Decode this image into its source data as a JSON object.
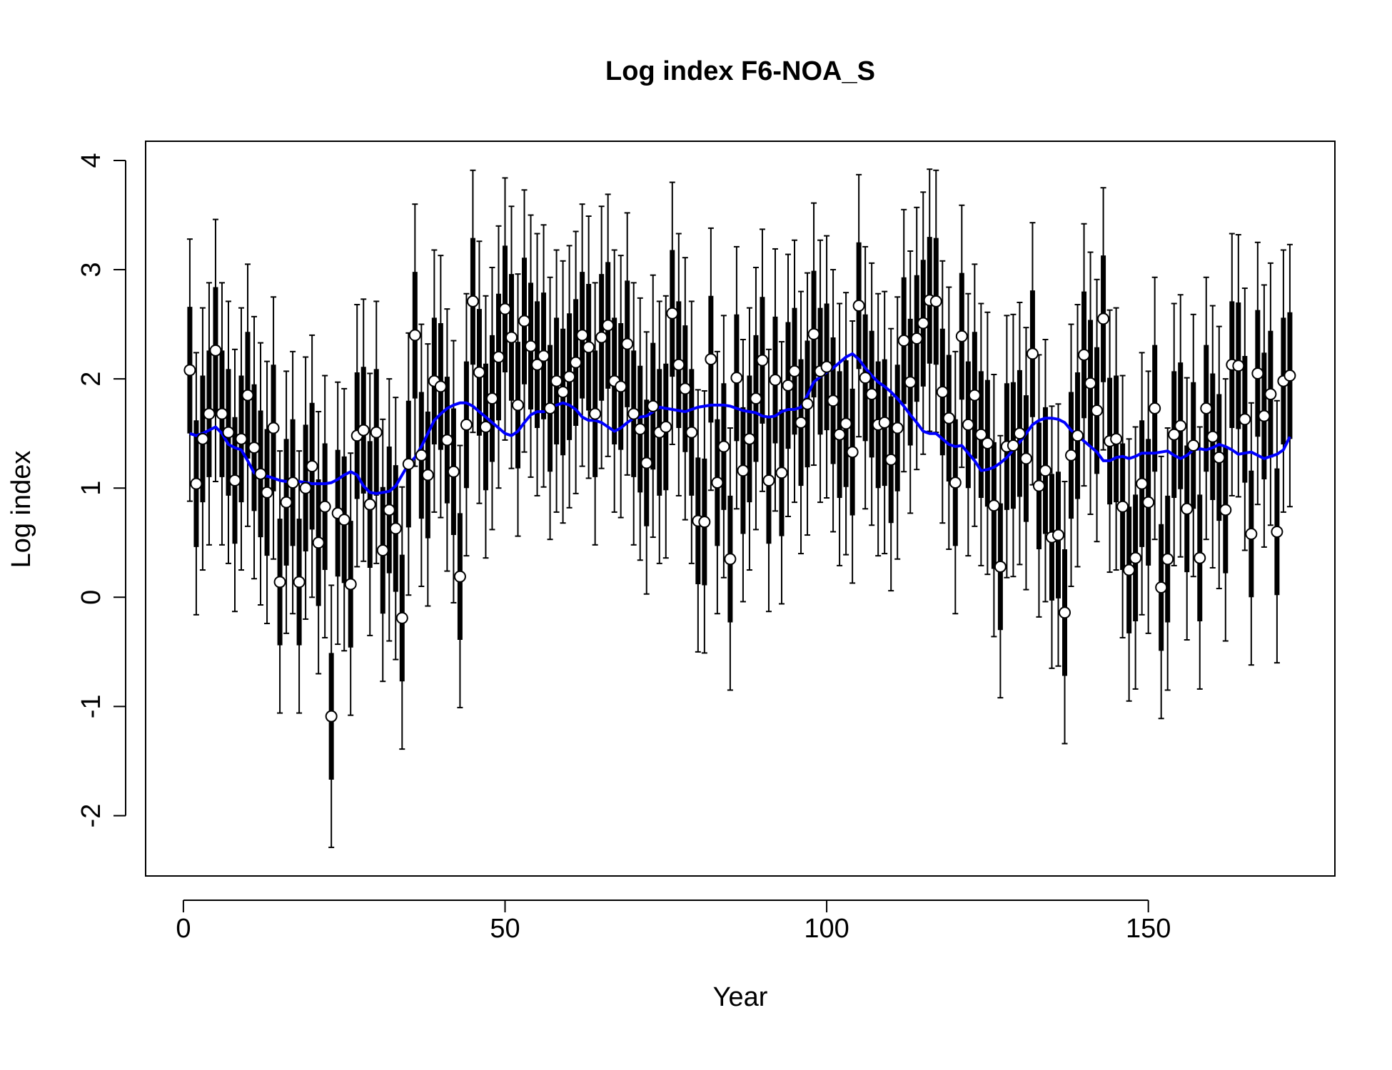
{
  "chart_data": {
    "type": "errorbar",
    "title": "Log index F6-NOA_S",
    "x_label": "Year",
    "y_label": "Log index",
    "xlim": [
      -5.87,
      179.0
    ],
    "ylim": [
      -2.552,
      4.176
    ],
    "xticks": [
      0,
      50,
      100,
      150
    ],
    "yticks": [
      -2,
      -1,
      0,
      1,
      2,
      3,
      4
    ],
    "x": [
      1,
      2,
      3,
      4,
      5,
      6,
      7,
      8,
      9,
      10,
      11,
      12,
      13,
      14,
      15,
      16,
      17,
      18,
      19,
      20,
      21,
      22,
      23,
      24,
      25,
      26,
      27,
      28,
      29,
      30,
      31,
      32,
      33,
      34,
      35,
      36,
      37,
      38,
      39,
      40,
      41,
      42,
      43,
      44,
      45,
      46,
      47,
      48,
      49,
      50,
      51,
      52,
      53,
      54,
      55,
      56,
      57,
      58,
      59,
      60,
      61,
      62,
      63,
      64,
      65,
      66,
      67,
      68,
      69,
      70,
      71,
      72,
      73,
      74,
      75,
      76,
      77,
      78,
      79,
      80,
      81,
      82,
      83,
      84,
      85,
      86,
      87,
      88,
      89,
      90,
      91,
      92,
      93,
      94,
      95,
      96,
      97,
      98,
      99,
      100,
      101,
      102,
      103,
      104,
      105,
      106,
      107,
      108,
      109,
      110,
      111,
      112,
      113,
      114,
      115,
      116,
      117,
      118,
      119,
      120,
      121,
      122,
      123,
      124,
      125,
      126,
      127,
      128,
      129,
      130,
      131,
      132,
      133,
      134,
      135,
      136,
      137,
      138,
      139,
      140,
      141,
      142,
      143,
      144,
      145,
      146,
      147,
      148,
      149,
      150,
      151,
      152,
      153,
      154,
      155,
      156,
      157,
      158,
      159,
      160,
      161,
      162,
      163,
      164,
      165,
      166,
      167,
      168,
      169,
      170,
      171,
      172
    ],
    "series": [
      {
        "color": "#000000",
        "error_outer": 1.2,
        "error_inner": 0.58,
        "values": [
          2.08,
          1.04,
          1.45,
          1.68,
          2.26,
          1.68,
          1.51,
          1.07,
          1.45,
          1.85,
          1.37,
          1.13,
          0.96,
          1.55,
          0.14,
          0.87,
          1.05,
          0.14,
          1.0,
          1.2,
          0.5,
          0.83,
          -1.09,
          0.77,
          0.71,
          0.12,
          1.48,
          1.53,
          0.85,
          1.51,
          0.43,
          0.8,
          0.63,
          -0.19,
          1.22,
          2.4,
          1.3,
          1.12,
          1.98,
          1.93,
          1.44,
          1.15,
          0.19,
          1.58,
          2.71,
          2.06,
          1.56,
          1.82,
          2.2,
          2.64,
          2.38,
          1.76,
          2.53,
          2.3,
          2.13,
          2.21,
          1.73,
          1.98,
          1.88,
          2.02,
          2.15,
          2.4,
          2.29,
          1.68,
          2.38,
          2.49,
          1.98,
          1.93,
          2.32,
          1.68,
          1.54,
          1.23,
          1.75,
          1.51,
          1.56,
          2.6,
          2.13,
          1.91,
          1.51,
          0.7,
          0.69,
          2.18,
          1.05,
          1.38,
          0.35,
          2.01,
          1.16,
          1.45,
          1.82,
          2.17,
          1.07,
          1.99,
          1.14,
          1.94,
          2.07,
          1.6,
          1.77,
          2.41,
          2.07,
          2.11,
          1.8,
          1.49,
          1.59,
          1.33,
          2.67,
          2.01,
          1.86,
          1.58,
          1.6,
          1.26,
          1.55,
          2.35,
          1.97,
          2.37,
          2.51,
          2.72,
          2.71,
          1.88,
          1.64,
          1.05,
          2.39,
          1.58,
          1.85,
          1.49,
          1.41,
          0.84,
          0.28,
          1.38,
          1.39,
          1.5,
          1.27,
          2.23,
          1.02,
          1.16,
          0.55,
          0.57,
          -0.14,
          1.3,
          1.48,
          2.22,
          1.96,
          1.71,
          2.55,
          1.43,
          1.45,
          0.83,
          0.25,
          0.36,
          1.04,
          0.87,
          1.73,
          0.09,
          0.35,
          1.49,
          1.57,
          0.81,
          1.39,
          0.36,
          1.73,
          1.47,
          1.28,
          0.8,
          2.13,
          2.12,
          1.63,
          0.58,
          2.05,
          1.66,
          1.86,
          0.6,
          1.98,
          2.03
        ]
      },
      {
        "color": "#0000ff",
        "values": [
          1.5,
          1.48,
          1.5,
          1.53,
          1.56,
          1.5,
          1.4,
          1.37,
          1.35,
          1.25,
          1.14,
          1.1,
          1.11,
          1.09,
          1.07,
          1.06,
          1.07,
          1.06,
          1.05,
          1.04,
          1.04,
          1.04,
          1.05,
          1.08,
          1.12,
          1.15,
          1.12,
          1.02,
          0.96,
          0.95,
          0.96,
          0.97,
          1.02,
          1.12,
          1.22,
          1.28,
          1.38,
          1.5,
          1.62,
          1.68,
          1.73,
          1.76,
          1.78,
          1.78,
          1.75,
          1.7,
          1.65,
          1.6,
          1.55,
          1.5,
          1.48,
          1.52,
          1.6,
          1.67,
          1.7,
          1.7,
          1.72,
          1.76,
          1.78,
          1.76,
          1.72,
          1.65,
          1.62,
          1.62,
          1.6,
          1.56,
          1.52,
          1.55,
          1.6,
          1.64,
          1.65,
          1.66,
          1.7,
          1.74,
          1.73,
          1.72,
          1.71,
          1.7,
          1.72,
          1.74,
          1.75,
          1.76,
          1.76,
          1.76,
          1.75,
          1.73,
          1.71,
          1.7,
          1.69,
          1.66,
          1.65,
          1.66,
          1.7,
          1.72,
          1.72,
          1.74,
          1.85,
          1.97,
          2.02,
          2.06,
          2.1,
          2.15,
          2.2,
          2.23,
          2.18,
          2.1,
          2.03,
          1.97,
          1.93,
          1.88,
          1.82,
          1.75,
          1.67,
          1.6,
          1.52,
          1.5,
          1.5,
          1.45,
          1.4,
          1.38,
          1.39,
          1.32,
          1.25,
          1.16,
          1.17,
          1.19,
          1.23,
          1.28,
          1.35,
          1.42,
          1.5,
          1.58,
          1.62,
          1.64,
          1.64,
          1.63,
          1.6,
          1.53,
          1.48,
          1.43,
          1.38,
          1.33,
          1.25,
          1.25,
          1.28,
          1.29,
          1.27,
          1.29,
          1.32,
          1.32,
          1.32,
          1.33,
          1.34,
          1.3,
          1.27,
          1.3,
          1.35,
          1.36,
          1.35,
          1.37,
          1.4,
          1.38,
          1.35,
          1.31,
          1.32,
          1.33,
          1.3,
          1.27,
          1.29,
          1.31,
          1.35,
          1.47
        ]
      }
    ]
  }
}
